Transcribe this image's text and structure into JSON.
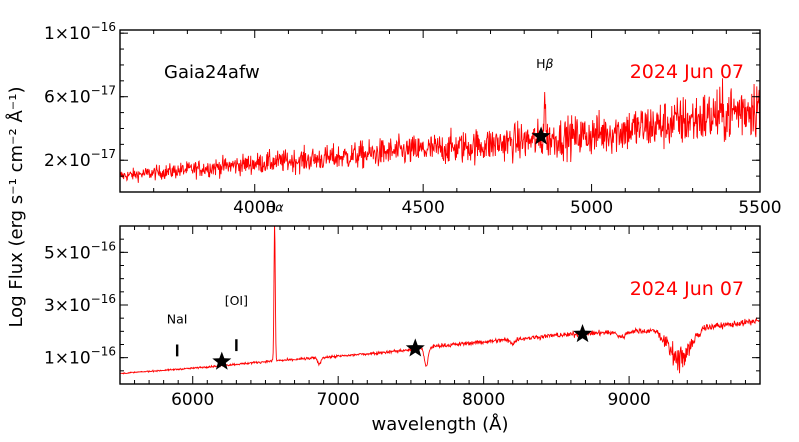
{
  "chart_data": [
    {
      "type": "line",
      "object_label": "Gaia24afw",
      "date_label": "2024 Jun 07",
      "xlim": [
        3600,
        5500
      ],
      "ylim": [
        0,
        1.02e-16
      ],
      "x_ticks": [
        4000,
        4500,
        5000,
        5500
      ],
      "y_ticks": [
        {
          "value": 2e-17,
          "label": "2×10",
          "exp": "−17"
        },
        {
          "value": 6e-17,
          "label": "6×10",
          "exp": "−17"
        },
        {
          "value": 1e-16,
          "label": "1×10",
          "exp": "−16"
        }
      ],
      "continuum": [
        {
          "x": 3600,
          "y": 1e-17
        },
        {
          "x": 3800,
          "y": 1.4e-17
        },
        {
          "x": 4000,
          "y": 1.8e-17
        },
        {
          "x": 4200,
          "y": 2.1e-17
        },
        {
          "x": 4400,
          "y": 2.5e-17
        },
        {
          "x": 4600,
          "y": 2.8e-17
        },
        {
          "x": 4800,
          "y": 3.2e-17
        },
        {
          "x": 5000,
          "y": 3.6e-17
        },
        {
          "x": 5200,
          "y": 4.2e-17
        },
        {
          "x": 5400,
          "y": 4.9e-17
        },
        {
          "x": 5500,
          "y": 5.5e-17
        }
      ],
      "noise_level": 0.35,
      "emission_lines": [
        {
          "x": 4861,
          "peak": 6.2e-17,
          "width": 3
        }
      ],
      "photometry": [
        {
          "x": 4850,
          "y": 3.5e-17
        }
      ],
      "line_labels": [
        {
          "text": "H",
          "greek": "β",
          "x": 4861,
          "y": 7.8e-17
        }
      ],
      "markers": []
    },
    {
      "type": "line",
      "date_label": "2024 Jun 07",
      "xlim": [
        5500,
        9900
      ],
      "ylim": [
        0,
        6e-16
      ],
      "x_ticks": [
        6000,
        7000,
        8000,
        9000
      ],
      "y_ticks": [
        {
          "value": 1e-16,
          "label": "1×10",
          "exp": "−16"
        },
        {
          "value": 3e-16,
          "label": "3×10",
          "exp": "−16"
        },
        {
          "value": 5e-16,
          "label": "5×10",
          "exp": "−16"
        }
      ],
      "continuum": [
        {
          "x": 5500,
          "y": 4e-17
        },
        {
          "x": 6000,
          "y": 6e-17
        },
        {
          "x": 6500,
          "y": 8.5e-17
        },
        {
          "x": 7000,
          "y": 1.05e-16
        },
        {
          "x": 7500,
          "y": 1.3e-16
        },
        {
          "x": 7700,
          "y": 1.45e-16
        },
        {
          "x": 8000,
          "y": 1.6e-16
        },
        {
          "x": 8500,
          "y": 1.85e-16
        },
        {
          "x": 9000,
          "y": 2e-16
        },
        {
          "x": 9300,
          "y": 2.05e-16
        },
        {
          "x": 9600,
          "y": 2.2e-16
        },
        {
          "x": 9900,
          "y": 2.4e-16
        }
      ],
      "noise_level": 0.05,
      "emission_lines": [
        {
          "x": 6563,
          "peak": 6.2e-16,
          "width": 6
        }
      ],
      "absorption_bands": [
        {
          "x": 6870,
          "depth": 2.5e-17,
          "width": 15
        },
        {
          "x": 7605,
          "depth": 7e-17,
          "width": 18
        },
        {
          "x": 8200,
          "depth": 1.5e-17,
          "width": 25
        },
        {
          "x": 8950,
          "depth": 2e-17,
          "width": 40
        },
        {
          "x": 9350,
          "depth": 1.2e-16,
          "width": 90
        }
      ],
      "photometry": [
        {
          "x": 6200,
          "y": 8.5e-17
        },
        {
          "x": 7530,
          "y": 1.35e-16
        },
        {
          "x": 8680,
          "y": 1.9e-16
        }
      ],
      "line_labels": [
        {
          "text": "NaI",
          "x": 5893,
          "y": 2.3e-16
        },
        {
          "text": "[OI]",
          "x": 6300,
          "y": 3e-16
        },
        {
          "text": "H",
          "greek": "α",
          "x": 6563,
          "y": 6.55e-16
        }
      ],
      "markers": [
        {
          "x": 5893,
          "y1": 1.05e-16,
          "y2": 1.5e-16
        },
        {
          "x": 6300,
          "y1": 1.25e-16,
          "y2": 1.7e-16
        }
      ]
    }
  ],
  "xlabel": "wavelength (Å)",
  "ylabel": "Log Flux (erg s⁻¹ cm⁻² Å⁻¹)",
  "colors": {
    "spectrum": "#ff0000",
    "date": "#ff0000",
    "axis": "#000000"
  }
}
